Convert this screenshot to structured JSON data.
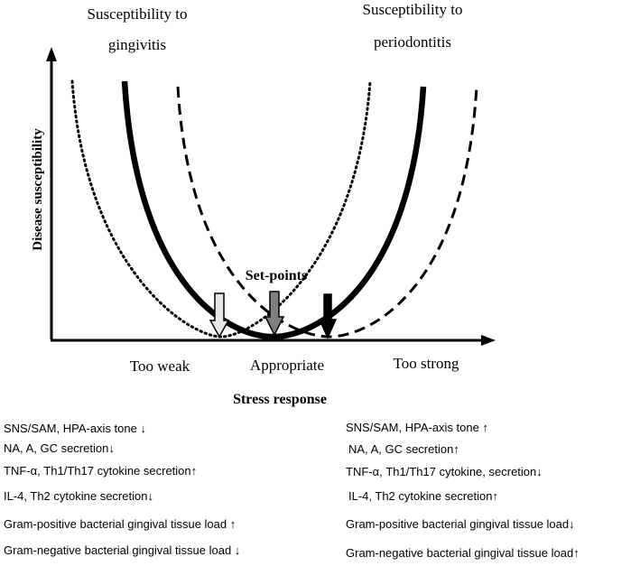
{
  "labels": {
    "gingivitis_line1": "Susceptibility to",
    "gingivitis_line2": "gingivitis",
    "periodontitis_line1": "Susceptibility to",
    "periodontitis_line2": "periodontitis",
    "y_axis": "Disease susceptibility",
    "x_axis": "Stress response",
    "set_points": "Set-points",
    "too_weak": "Too weak",
    "appropriate": "Appropriate",
    "too_strong": "Too strong"
  },
  "left_list": [
    "SNS/SAM, HPA-axis tone ↓",
    "NA, A, GC secretion↓",
    "TNF-α, Th1/Th17 cytokine secretion↑",
    "IL-4, Th2 cytokine secretion↓",
    "Gram-positive bacterial gingival tissue load ↑",
    "Gram-negative bacterial gingival tissue load ↓"
  ],
  "right_list": [
    "SNS/SAM, HPA-axis tone ↑",
    "NA, A, GC secretion↑",
    "TNF-α, Th1/Th17 cytokine, secretion↓",
    "IL-4, Th2 cytokine secretion↑",
    "Gram-positive bacterial gingival tissue load↓",
    "Gram-negative bacterial gingival tissue load↑"
  ],
  "colors": {
    "ink": "#000000",
    "arrow_light": "#e6e6e6",
    "arrow_mid": "#7f7f7f",
    "arrow_dark": "#000000"
  }
}
